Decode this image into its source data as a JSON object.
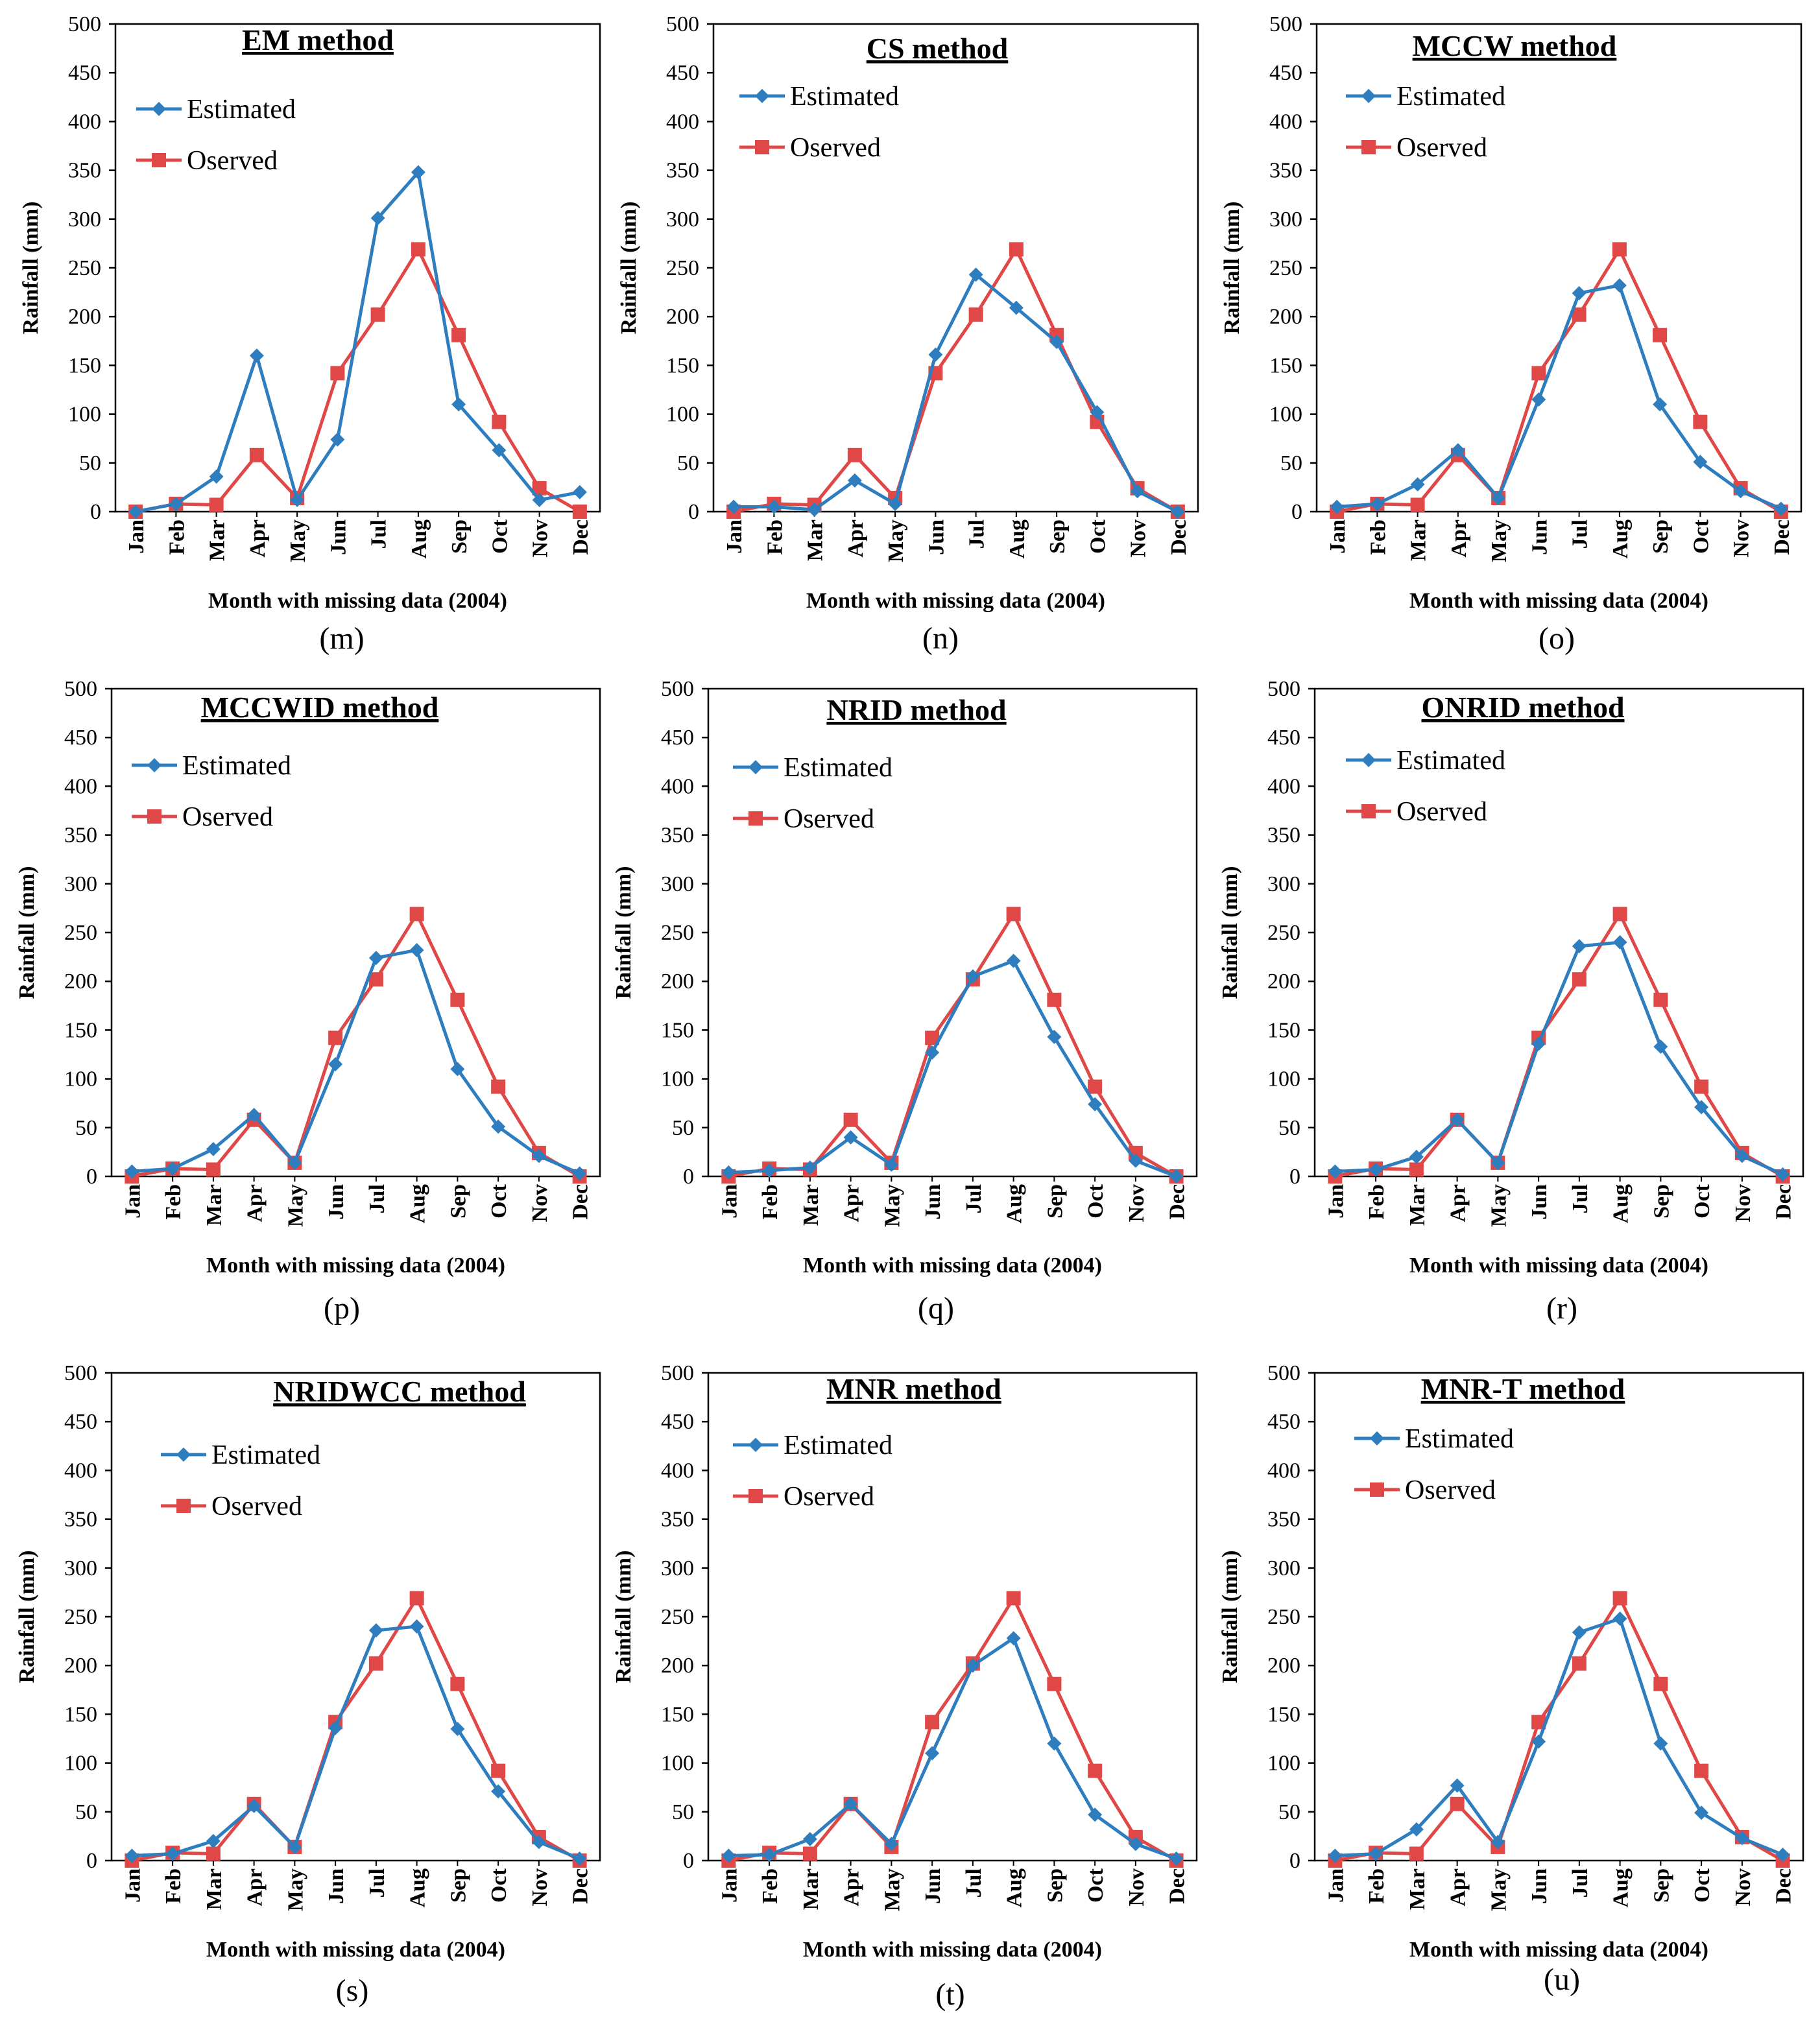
{
  "figure": {
    "series_colors": {
      "estimated": "#2E7EBF",
      "observed": "#E04848"
    }
  },
  "chart_data": [
    {
      "type": "line",
      "panel": "(m)",
      "title": "EM method",
      "xlabel": "Month with missing data (2004)",
      "ylabel": "Rainfall (mm)",
      "ylim": [
        0,
        500
      ],
      "yticks": [
        0,
        50,
        100,
        150,
        200,
        250,
        300,
        350,
        400,
        450,
        500
      ],
      "categories": [
        "Jan",
        "Feb",
        "Mar",
        "Apr",
        "May",
        "Jun",
        "Jul",
        "Aug",
        "Sep",
        "Oct",
        "Nov",
        "Dec"
      ],
      "legend_position": "top-left",
      "series": [
        {
          "name": "Estimated",
          "marker": "diamond",
          "values": [
            0,
            8,
            36,
            160,
            12,
            74,
            301,
            348,
            110,
            63,
            12,
            20
          ]
        },
        {
          "name": "Oserved",
          "marker": "square",
          "values": [
            0,
            8,
            7,
            58,
            14,
            142,
            202,
            269,
            181,
            92,
            24,
            0
          ]
        }
      ]
    },
    {
      "type": "line",
      "panel": "(n)",
      "title": "CS method",
      "xlabel": "Month with missing data (2004)",
      "ylabel": "Rainfall (mm)",
      "ylim": [
        0,
        500
      ],
      "yticks": [
        0,
        50,
        100,
        150,
        200,
        250,
        300,
        350,
        400,
        450,
        500
      ],
      "categories": [
        "Jan",
        "Feb",
        "Mar",
        "Apr",
        "May",
        "Jun",
        "Jul",
        "Aug",
        "Sep",
        "Oct",
        "Nov",
        "Dec"
      ],
      "legend_position": "top-left",
      "series": [
        {
          "name": "Estimated",
          "marker": "diamond",
          "values": [
            5,
            5,
            2,
            32,
            8,
            161,
            243,
            209,
            174,
            102,
            21,
            0
          ]
        },
        {
          "name": "Oserved",
          "marker": "square",
          "values": [
            0,
            8,
            7,
            58,
            14,
            142,
            202,
            269,
            181,
            92,
            24,
            0
          ]
        }
      ]
    },
    {
      "type": "line",
      "panel": "(o)",
      "title": "MCCW method",
      "xlabel": "Month with missing data (2004)",
      "ylabel": "Rainfall (mm)",
      "ylim": [
        0,
        500
      ],
      "yticks": [
        0,
        50,
        100,
        150,
        200,
        250,
        300,
        350,
        400,
        450,
        500
      ],
      "categories": [
        "Jan",
        "Feb",
        "Mar",
        "Apr",
        "May",
        "Jun",
        "Jul",
        "Aug",
        "Sep",
        "Oct",
        "Nov",
        "Dec"
      ],
      "legend_position": "top-left",
      "series": [
        {
          "name": "Estimated",
          "marker": "diamond",
          "values": [
            5,
            8,
            28,
            63,
            14,
            115,
            224,
            232,
            110,
            51,
            21,
            3
          ]
        },
        {
          "name": "Oserved",
          "marker": "square",
          "values": [
            0,
            8,
            7,
            58,
            14,
            142,
            202,
            269,
            181,
            92,
            24,
            0
          ]
        }
      ]
    },
    {
      "type": "line",
      "panel": "(p)",
      "title": "MCCWID method",
      "xlabel": "Month with missing data (2004)",
      "ylabel": "Rainfall (mm)",
      "ylim": [
        0,
        500
      ],
      "yticks": [
        0,
        50,
        100,
        150,
        200,
        250,
        300,
        350,
        400,
        450,
        500
      ],
      "categories": [
        "Jan",
        "Feb",
        "Mar",
        "Apr",
        "May",
        "Jun",
        "Jul",
        "Aug",
        "Sep",
        "Oct",
        "Nov",
        "Dec"
      ],
      "legend_position": "top-left",
      "series": [
        {
          "name": "Estimated",
          "marker": "diamond",
          "values": [
            5,
            8,
            28,
            63,
            14,
            115,
            224,
            232,
            110,
            51,
            21,
            3
          ]
        },
        {
          "name": "Oserved",
          "marker": "square",
          "values": [
            0,
            8,
            7,
            58,
            14,
            142,
            202,
            269,
            181,
            92,
            24,
            0
          ]
        }
      ]
    },
    {
      "type": "line",
      "panel": "(q)",
      "title": "NRID method",
      "xlabel": "Month with missing data (2004)",
      "ylabel": "Rainfall (mm)",
      "ylim": [
        0,
        500
      ],
      "yticks": [
        0,
        50,
        100,
        150,
        200,
        250,
        300,
        350,
        400,
        450,
        500
      ],
      "categories": [
        "Jan",
        "Feb",
        "Mar",
        "Apr",
        "May",
        "Jun",
        "Jul",
        "Aug",
        "Sep",
        "Oct",
        "Nov",
        "Dec"
      ],
      "legend_position": "top-left",
      "series": [
        {
          "name": "Estimated",
          "marker": "diamond",
          "values": [
            4,
            6,
            9,
            40,
            12,
            127,
            205,
            221,
            143,
            74,
            16,
            0
          ]
        },
        {
          "name": "Oserved",
          "marker": "square",
          "values": [
            0,
            8,
            7,
            58,
            14,
            142,
            202,
            269,
            181,
            92,
            24,
            0
          ]
        }
      ]
    },
    {
      "type": "line",
      "panel": "(r)",
      "title": "ONRID method",
      "xlabel": "Month with missing data (2004)",
      "ylabel": "Rainfall (mm)",
      "ylim": [
        0,
        500
      ],
      "yticks": [
        0,
        50,
        100,
        150,
        200,
        250,
        300,
        350,
        400,
        450,
        500
      ],
      "categories": [
        "Jan",
        "Feb",
        "Mar",
        "Apr",
        "May",
        "Jun",
        "Jul",
        "Aug",
        "Sep",
        "Oct",
        "Nov",
        "Dec"
      ],
      "legend_position": "top-left",
      "series": [
        {
          "name": "Estimated",
          "marker": "diamond",
          "values": [
            5,
            7,
            20,
            58,
            14,
            136,
            236,
            240,
            133,
            71,
            21,
            2
          ]
        },
        {
          "name": "Oserved",
          "marker": "square",
          "values": [
            0,
            8,
            7,
            58,
            14,
            142,
            202,
            269,
            181,
            92,
            24,
            0
          ]
        }
      ]
    },
    {
      "type": "line",
      "panel": "(s)",
      "title": "NRIDWCC method",
      "xlabel": "Month with missing data (2004)",
      "ylabel": "Rainfall (mm)",
      "ylim": [
        0,
        500
      ],
      "yticks": [
        0,
        50,
        100,
        150,
        200,
        250,
        300,
        350,
        400,
        450,
        500
      ],
      "categories": [
        "Jan",
        "Feb",
        "Mar",
        "Apr",
        "May",
        "Jun",
        "Jul",
        "Aug",
        "Sep",
        "Oct",
        "Nov",
        "Dec"
      ],
      "legend_position": "top-left",
      "series": [
        {
          "name": "Estimated",
          "marker": "diamond",
          "values": [
            5,
            7,
            20,
            56,
            14,
            136,
            236,
            240,
            135,
            71,
            19,
            2
          ]
        },
        {
          "name": "Oserved",
          "marker": "square",
          "values": [
            0,
            8,
            7,
            58,
            14,
            142,
            202,
            269,
            181,
            92,
            24,
            0
          ]
        }
      ]
    },
    {
      "type": "line",
      "panel": "(t)",
      "title": "MNR method",
      "xlabel": "Month with missing data (2004)",
      "ylabel": "Rainfall (mm)",
      "ylim": [
        0,
        500
      ],
      "yticks": [
        0,
        50,
        100,
        150,
        200,
        250,
        300,
        350,
        400,
        450,
        500
      ],
      "categories": [
        "Jan",
        "Feb",
        "Mar",
        "Apr",
        "May",
        "Jun",
        "Jul",
        "Aug",
        "Sep",
        "Oct",
        "Nov",
        "Dec"
      ],
      "legend_position": "top-left",
      "series": [
        {
          "name": "Estimated",
          "marker": "diamond",
          "values": [
            5,
            6,
            22,
            58,
            17,
            110,
            200,
            228,
            120,
            47,
            17,
            2
          ]
        },
        {
          "name": "Oserved",
          "marker": "square",
          "values": [
            0,
            8,
            7,
            58,
            14,
            142,
            202,
            269,
            181,
            92,
            24,
            0
          ]
        }
      ]
    },
    {
      "type": "line",
      "panel": "(u)",
      "title": "MNR-T method",
      "xlabel": "Month with missing data (2004)",
      "ylabel": "Rainfall (mm)",
      "ylim": [
        0,
        500
      ],
      "yticks": [
        0,
        50,
        100,
        150,
        200,
        250,
        300,
        350,
        400,
        450,
        500
      ],
      "categories": [
        "Jan",
        "Feb",
        "Mar",
        "Apr",
        "May",
        "Jun",
        "Jul",
        "Aug",
        "Sep",
        "Oct",
        "Nov",
        "Dec"
      ],
      "legend_position": "top-left",
      "series": [
        {
          "name": "Estimated",
          "marker": "diamond",
          "values": [
            5,
            7,
            32,
            77,
            19,
            122,
            234,
            248,
            120,
            49,
            23,
            6
          ]
        },
        {
          "name": "Oserved",
          "marker": "square",
          "values": [
            0,
            8,
            7,
            58,
            14,
            142,
            202,
            269,
            181,
            92,
            24,
            0
          ]
        }
      ]
    }
  ]
}
